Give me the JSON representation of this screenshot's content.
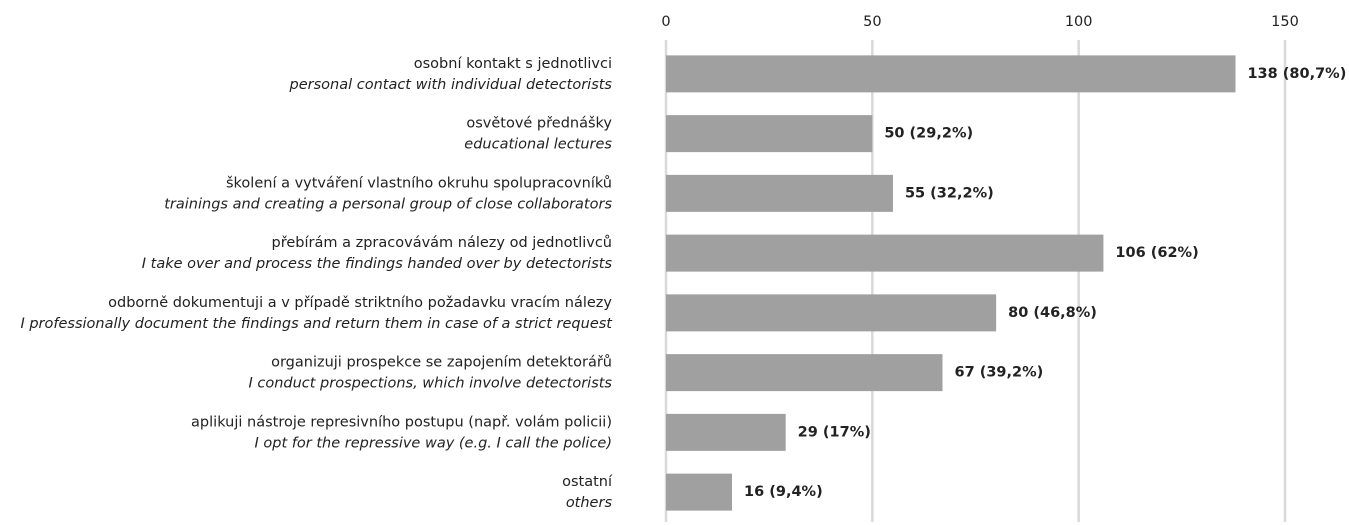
{
  "chart_data": {
    "type": "hbar",
    "categories": [
      "osobní kontakt s jednotlivci",
      "osvětové přednášky",
      "školení a vytváření vlastního okruhu spolupracovníků",
      "přebírám a zpracovávám nálezy od jednotlivců",
      "odborně dokumentuji a v případě striktního požadavku vracím nálezy",
      "organizuji prospekce se zapojením detektorářů",
      "aplikuji nástroje represivního postupu (např. volám policii)",
      "ostatní"
    ],
    "categories_en": [
      "personal contact with individual detectorists",
      "educational lectures",
      "trainings and creating a personal group of close collaborators",
      "I take over and process the findings handed over by detectorists",
      "I professionally document the findings and return them in case of a strict request",
      "I conduct prospections, which involve detectorists",
      "I opt for the repressive way (e.g. I call the police)",
      "others"
    ],
    "values": [
      138,
      50,
      55,
      106,
      80,
      67,
      29,
      16
    ],
    "value_labels": [
      "138 (80,7%)",
      "50 (29,2%)",
      "55 (32,2%)",
      "106 (62%)",
      "80 (46,8%)",
      "67 (39,2%)",
      "29 (17%)",
      "16 (9,4%)"
    ],
    "color": "#a0a0a0",
    "xlim": [
      0,
      150
    ],
    "xticks": [
      0,
      50,
      100,
      150
    ],
    "grid": true
  }
}
